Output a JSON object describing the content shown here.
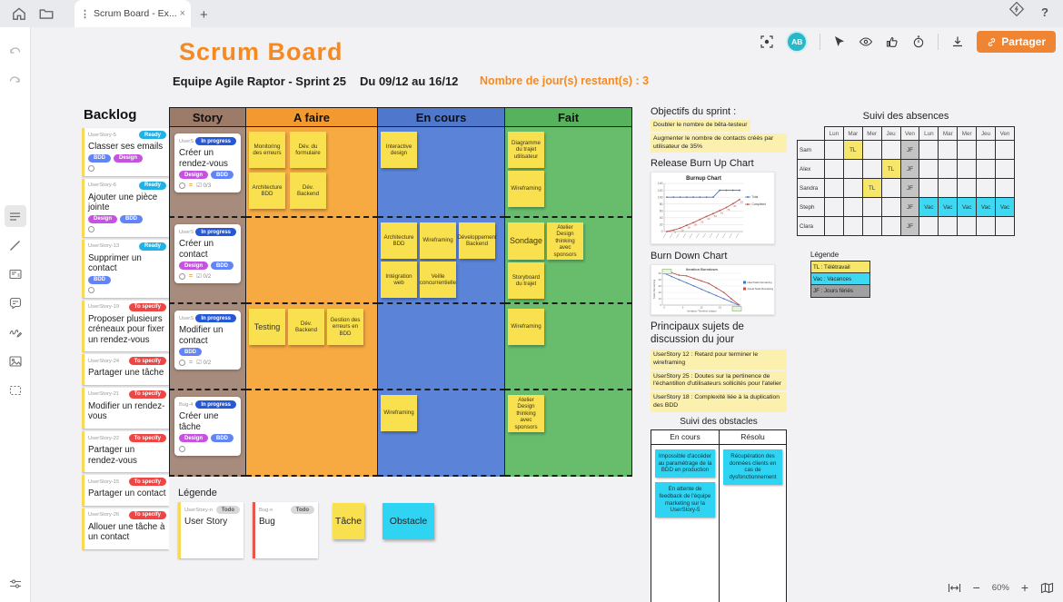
{
  "chrome": {
    "tab_title": "Scrum Board - Ex...",
    "help_label": "?"
  },
  "toolbar": {
    "avatar": "AB",
    "share_label": "Partager"
  },
  "header": {
    "title": "Scrum Board",
    "team": "Equipe Agile Raptor - Sprint 25",
    "dates": "Du 09/12 au 16/12",
    "remaining": "Nombre de jour(s) restant(s) : 3"
  },
  "backlog": {
    "title": "Backlog",
    "cards": [
      {
        "id": "UserStory-5",
        "status": "Ready",
        "title": "Classer ses emails",
        "tags": [
          "BDD",
          "Design"
        ],
        "assignee_icon": true
      },
      {
        "id": "UserStory-6",
        "status": "Ready",
        "title": "Ajouter une pièce jointe",
        "tags": [
          "Design",
          "BDD"
        ],
        "assignee_icon": true
      },
      {
        "id": "UserStory-13",
        "status": "Ready",
        "title": "Supprimer un contact",
        "tags": [
          "BDD"
        ],
        "assignee_icon": true
      },
      {
        "id": "UserStory-19",
        "status": "To specify",
        "title": "Proposer plusieurs créneaux pour fixer un rendez-vous",
        "tags": [],
        "assignee_icon": false
      },
      {
        "id": "UserStory-24",
        "status": "To specify",
        "title": "Partager une tâche",
        "tags": [],
        "assignee_icon": false
      },
      {
        "id": "UserStory-21",
        "status": "To specify",
        "title": "Modifier un rendez-vous",
        "tags": [],
        "assignee_icon": false
      },
      {
        "id": "UserStory-22",
        "status": "To specify",
        "title": "Partager un rendez-vous",
        "tags": [],
        "assignee_icon": false
      },
      {
        "id": "UserStory-15",
        "status": "To specify",
        "title": "Partager un contact",
        "tags": [],
        "assignee_icon": false
      },
      {
        "id": "UserStory-26",
        "status": "To specify",
        "title": "Allouer une tâche à un contact",
        "tags": [],
        "assignee_icon": false
      }
    ]
  },
  "board": {
    "columns": [
      {
        "label": "Story"
      },
      {
        "label": "A faire"
      },
      {
        "label": "En cours"
      },
      {
        "label": "Fait"
      }
    ],
    "rows": [
      {
        "story": {
          "id": "UserStory-18",
          "status": "In progress",
          "title": "Créer un rendez-vous",
          "tags": [
            "Design",
            "BDD"
          ],
          "checklist": "0/3"
        },
        "a_faire": [
          "Monitoring des erreurs",
          "Dév. du formulaire",
          "Architecture BDD",
          "Dév. Backend"
        ],
        "en_cours": [
          "Interactive design"
        ],
        "fait": [
          "Diagramme du trajet utilisateur",
          "Wireframing"
        ]
      },
      {
        "story": {
          "id": "UserStory-12",
          "status": "In progress",
          "title": "Créer un contact",
          "tags": [
            "Design",
            "BDD"
          ],
          "checklist": "0/2"
        },
        "a_faire": [],
        "en_cours": [
          "Architecture BDD",
          "Wireframing",
          "Développement Backend",
          "Intégration web",
          "Veille concurrentielle"
        ],
        "fait": [
          "Sondage",
          "Atelier Design thinking avec sponsors",
          "Storyboard du trajet"
        ]
      },
      {
        "story": {
          "id": "UserStory-22",
          "status": "In progress",
          "title": "Modifier un contact",
          "tags": [
            "BDD"
          ],
          "checklist": "0/2"
        },
        "a_faire": [
          "Testing",
          "Dév. Backend",
          "Gestion des erreurs en BDD"
        ],
        "en_cours": [],
        "fait": [
          "Wireframing"
        ]
      },
      {
        "story": {
          "id": "Bug-4",
          "status": "In progress",
          "title": "Créer une tâche",
          "tags": [
            "Design",
            "BDD"
          ],
          "checklist": null
        },
        "a_faire": [],
        "en_cours": [
          "Wireframing"
        ],
        "fait": [
          "Atelier Design thinking avec sponsors"
        ]
      }
    ]
  },
  "board_legend": {
    "title": "Légende",
    "user_story": {
      "id": "UserStory-n",
      "status": "Todo",
      "label": "User Story"
    },
    "bug": {
      "id": "Bug-n",
      "status": "Todo",
      "label": "Bug"
    },
    "tache": "Tâche",
    "obstacle": "Obstacle"
  },
  "sprint_panel": {
    "objectives_title": "Objectifs du sprint :",
    "objectives": [
      "Doubler le nombre de bêta-testeur",
      "Augmenter le nombre de contacts créés par utilisateur de 35%"
    ],
    "burnup_title": "Release Burn Up Chart",
    "burndown_title": "Burn Down Chart",
    "discussion_title": "Principaux sujets de discussion du jour",
    "discussion": [
      "UserStory 12 : Retard pour terminer le wireframing",
      "UserStory 25 : Doutes sur la pertinence de l'échantillon d'utilisateurs sollicités pour l'atelier",
      "UserStory 18 : Complexité liée à la duplication des BDD"
    ]
  },
  "obstacles": {
    "title": "Suivi des obstacles",
    "columns": [
      "En cours",
      "Résolu"
    ],
    "en_cours": [
      "Impossible d'accéder au paramétrage de la BDD en production",
      "En attente de feedback de l'équipe marketing sur la UserStory-5"
    ],
    "resolu": [
      "Récupération des données clients en cas de dysfonctionnement"
    ]
  },
  "absences": {
    "title": "Suivi des absences",
    "days": [
      "Lun",
      "Mar",
      "Mer",
      "Jeu",
      "Ven",
      "Lun",
      "Mar",
      "Mer",
      "Jeu",
      "Ven"
    ],
    "rows": [
      {
        "name": "Sam",
        "cells": [
          "",
          "TL",
          "",
          "",
          "JF",
          "",
          "",
          "",
          "",
          ""
        ]
      },
      {
        "name": "Alex",
        "cells": [
          "",
          "",
          "",
          "TL",
          "JF",
          "",
          "",
          "",
          "",
          ""
        ]
      },
      {
        "name": "Sandra",
        "cells": [
          "",
          "",
          "TL",
          "",
          "JF",
          "",
          "",
          "",
          "",
          ""
        ]
      },
      {
        "name": "Steph",
        "cells": [
          "",
          "",
          "",
          "",
          "JF",
          "Vac",
          "Vac",
          "Vac",
          "Vac",
          "Vac"
        ]
      },
      {
        "name": "Clara",
        "cells": [
          "",
          "",
          "",
          "",
          "JF",
          "",
          "",
          "",
          "",
          ""
        ]
      }
    ],
    "legend_title": "Légende",
    "legend": [
      {
        "label": "TL : Télétravail",
        "type": "tl"
      },
      {
        "label": "Vac : Vacances",
        "type": "vac"
      },
      {
        "label": "JF : Jours fériés",
        "type": "jf"
      }
    ]
  },
  "zoom_controls": {
    "level": "60%"
  },
  "chart_data": [
    {
      "type": "line",
      "title": "Burnup Chart",
      "yticks": [
        0,
        20,
        40,
        60,
        80,
        100,
        120,
        140
      ],
      "ylim": [
        0,
        140
      ],
      "legend_position": "right",
      "series": [
        {
          "name": "Total",
          "color": "#4472c4",
          "values": [
            100,
            100,
            100,
            100,
            100,
            100,
            100,
            100,
            120,
            120,
            120,
            120
          ]
        },
        {
          "name": "Completed",
          "color": "#c0504d",
          "values": [
            0,
            4,
            10,
            18,
            26,
            35,
            44,
            52,
            61,
            70,
            81,
            93
          ]
        }
      ]
    },
    {
      "type": "line",
      "title": "Iteration Burndown",
      "xlabel": "Iteration Timeline (days)",
      "ylabel": "Tasks Remaining",
      "yticks": [
        0,
        10,
        20,
        30,
        40,
        50
      ],
      "ylim": [
        0,
        50
      ],
      "xticks": [
        0,
        5,
        10,
        15,
        20
      ],
      "legend_position": "right",
      "series": [
        {
          "name": "Ideal Tasks Remaining",
          "color": "#4472c4",
          "values": [
            50,
            45,
            40,
            35,
            30,
            25,
            20,
            15,
            10,
            5,
            0
          ]
        },
        {
          "name": "Actual Tasks Remaining",
          "color": "#c0504d",
          "values": [
            50,
            51,
            47,
            46,
            42,
            38,
            34,
            27,
            20,
            10,
            1
          ]
        }
      ]
    }
  ],
  "colors": {
    "accent_orange": "#f6891f",
    "share_button": "#ef8432",
    "avatar_teal": "#27b9c9",
    "ready_badge": "#20b1e6",
    "to_specify_badge": "#ee4545",
    "in_progress_badge": "#2458d6",
    "tag_bdd": "#6284f7",
    "tag_design": "#c653e0",
    "col_story": "#a78b7c",
    "col_a_faire": "#f7aa41",
    "col_en_cours": "#5b84d8",
    "col_fait": "#68bd6c",
    "sticky_yellow": "#f8e04f",
    "sticky_cyan": "#2fd4f3",
    "abs_tl": "#f6e66a",
    "abs_vac": "#3fd8f2",
    "abs_jf": "#c4c4c4",
    "highlight": "#fbf0ad"
  }
}
